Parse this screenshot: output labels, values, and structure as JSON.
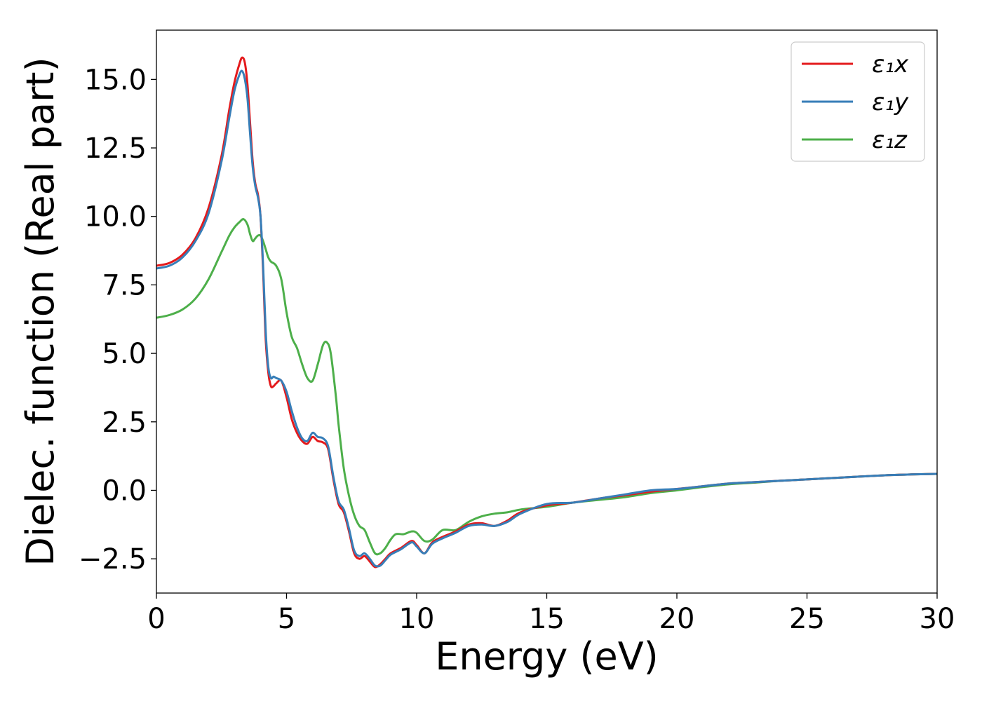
{
  "chart_data": {
    "type": "line",
    "title": "",
    "xlabel": "Energy (eV)",
    "ylabel": "Dielec. function (Real part)",
    "xlim": [
      0,
      30
    ],
    "ylim": [
      -3.75,
      16.8
    ],
    "xticks": [
      0,
      5,
      10,
      15,
      20,
      25,
      30
    ],
    "xtick_labels": [
      "0",
      "5",
      "10",
      "15",
      "20",
      "25",
      "30"
    ],
    "yticks": [
      -2.5,
      0.0,
      2.5,
      5.0,
      7.5,
      10.0,
      12.5,
      15.0
    ],
    "ytick_labels": [
      "−2.5",
      "0.0",
      "2.5",
      "5.0",
      "7.5",
      "10.0",
      "12.5",
      "15.0"
    ],
    "grid": false,
    "legend_position": "top-right",
    "series": [
      {
        "name": "ε₁x",
        "color": "#e41a1c",
        "x": [
          0,
          0.5,
          1.0,
          1.5,
          2.0,
          2.5,
          2.8,
          3.0,
          3.2,
          3.3,
          3.4,
          3.5,
          3.6,
          3.7,
          3.8,
          3.9,
          4.0,
          4.1,
          4.2,
          4.3,
          4.4,
          4.5,
          4.6,
          4.8,
          5.0,
          5.2,
          5.4,
          5.6,
          5.8,
          6.0,
          6.2,
          6.4,
          6.6,
          6.8,
          7.0,
          7.2,
          7.4,
          7.6,
          7.8,
          8.0,
          8.2,
          8.4,
          8.6,
          8.8,
          9.0,
          9.4,
          9.8,
          10.0,
          10.3,
          10.6,
          11.0,
          11.5,
          12.0,
          12.5,
          13.0,
          13.5,
          14.0,
          15.0,
          16.0,
          17.0,
          18.0,
          19.0,
          20.0,
          21.0,
          22.0,
          23.0,
          24.0,
          25.0,
          26.0,
          27.0,
          28.0,
          29.0,
          30.0
        ],
        "values": [
          8.2,
          8.3,
          8.6,
          9.2,
          10.3,
          12.2,
          13.9,
          14.9,
          15.6,
          15.8,
          15.6,
          14.8,
          13.4,
          12.0,
          11.2,
          10.8,
          10.0,
          8.0,
          5.5,
          4.3,
          3.8,
          3.8,
          3.9,
          4.0,
          3.4,
          2.6,
          2.1,
          1.8,
          1.7,
          1.95,
          1.8,
          1.75,
          1.5,
          0.4,
          -0.5,
          -0.8,
          -1.5,
          -2.3,
          -2.5,
          -2.4,
          -2.6,
          -2.8,
          -2.7,
          -2.5,
          -2.3,
          -2.1,
          -1.85,
          -2.0,
          -2.3,
          -1.9,
          -1.7,
          -1.5,
          -1.25,
          -1.2,
          -1.3,
          -1.1,
          -0.8,
          -0.55,
          -0.45,
          -0.3,
          -0.18,
          -0.05,
          0.05,
          0.15,
          0.25,
          0.3,
          0.35,
          0.4,
          0.45,
          0.5,
          0.55,
          0.58,
          0.6
        ]
      },
      {
        "name": "ε₁y",
        "color": "#377eb8",
        "x": [
          0,
          0.5,
          1.0,
          1.5,
          2.0,
          2.5,
          2.8,
          3.0,
          3.2,
          3.3,
          3.4,
          3.5,
          3.6,
          3.7,
          3.8,
          3.9,
          4.0,
          4.1,
          4.2,
          4.3,
          4.4,
          4.5,
          4.6,
          4.8,
          5.0,
          5.2,
          5.4,
          5.6,
          5.8,
          6.0,
          6.2,
          6.4,
          6.6,
          6.8,
          7.0,
          7.2,
          7.4,
          7.6,
          7.8,
          8.0,
          8.2,
          8.4,
          8.6,
          8.8,
          9.0,
          9.4,
          9.8,
          10.0,
          10.3,
          10.6,
          11.0,
          11.5,
          12.0,
          12.5,
          13.0,
          13.5,
          14.0,
          15.0,
          16.0,
          17.0,
          18.0,
          19.0,
          20.0,
          21.0,
          22.0,
          23.0,
          24.0,
          25.0,
          26.0,
          27.0,
          28.0,
          29.0,
          30.0
        ],
        "values": [
          8.1,
          8.2,
          8.5,
          9.1,
          10.1,
          12.0,
          13.6,
          14.6,
          15.2,
          15.3,
          15.0,
          14.3,
          13.0,
          11.8,
          11.1,
          10.7,
          10.0,
          8.2,
          5.8,
          4.5,
          4.1,
          4.15,
          4.1,
          4.0,
          3.6,
          2.9,
          2.3,
          1.9,
          1.8,
          2.1,
          1.95,
          1.9,
          1.6,
          0.5,
          -0.4,
          -0.7,
          -1.4,
          -2.2,
          -2.4,
          -2.3,
          -2.5,
          -2.75,
          -2.75,
          -2.55,
          -2.35,
          -2.15,
          -1.9,
          -2.05,
          -2.3,
          -1.95,
          -1.75,
          -1.55,
          -1.3,
          -1.25,
          -1.3,
          -1.15,
          -0.85,
          -0.5,
          -0.45,
          -0.3,
          -0.15,
          0.0,
          0.05,
          0.15,
          0.25,
          0.3,
          0.35,
          0.4,
          0.45,
          0.5,
          0.55,
          0.58,
          0.6
        ]
      },
      {
        "name": "ε₁z",
        "color": "#4daf4a",
        "x": [
          0,
          0.5,
          1.0,
          1.5,
          2.0,
          2.5,
          2.8,
          3.0,
          3.2,
          3.35,
          3.5,
          3.6,
          3.7,
          3.8,
          3.9,
          4.0,
          4.1,
          4.2,
          4.3,
          4.4,
          4.6,
          4.8,
          5.0,
          5.2,
          5.4,
          5.6,
          5.8,
          6.0,
          6.2,
          6.4,
          6.55,
          6.7,
          6.9,
          7.0,
          7.2,
          7.4,
          7.6,
          7.8,
          8.0,
          8.2,
          8.4,
          8.6,
          8.8,
          9.0,
          9.2,
          9.5,
          9.8,
          10.0,
          10.3,
          10.6,
          11.0,
          11.5,
          12.0,
          12.5,
          13.0,
          13.5,
          14.0,
          15.0,
          16.0,
          17.0,
          18.0,
          19.0,
          20.0,
          21.0,
          22.0,
          23.0,
          24.0,
          25.0,
          26.0,
          27.0,
          28.0,
          29.0,
          30.0
        ],
        "values": [
          6.3,
          6.4,
          6.6,
          7.0,
          7.7,
          8.7,
          9.3,
          9.6,
          9.8,
          9.9,
          9.7,
          9.35,
          9.1,
          9.2,
          9.3,
          9.3,
          9.1,
          8.8,
          8.5,
          8.35,
          8.2,
          7.7,
          6.5,
          5.6,
          5.2,
          4.6,
          4.1,
          4.0,
          4.6,
          5.3,
          5.4,
          5.0,
          3.4,
          2.4,
          0.8,
          -0.2,
          -0.9,
          -1.3,
          -1.45,
          -1.9,
          -2.3,
          -2.3,
          -2.1,
          -1.8,
          -1.6,
          -1.6,
          -1.5,
          -1.55,
          -1.85,
          -1.8,
          -1.45,
          -1.45,
          -1.15,
          -0.95,
          -0.85,
          -0.8,
          -0.7,
          -0.6,
          -0.45,
          -0.35,
          -0.25,
          -0.1,
          0.0,
          0.12,
          0.22,
          0.28,
          0.35,
          0.4,
          0.45,
          0.5,
          0.55,
          0.58,
          0.6
        ]
      }
    ]
  }
}
